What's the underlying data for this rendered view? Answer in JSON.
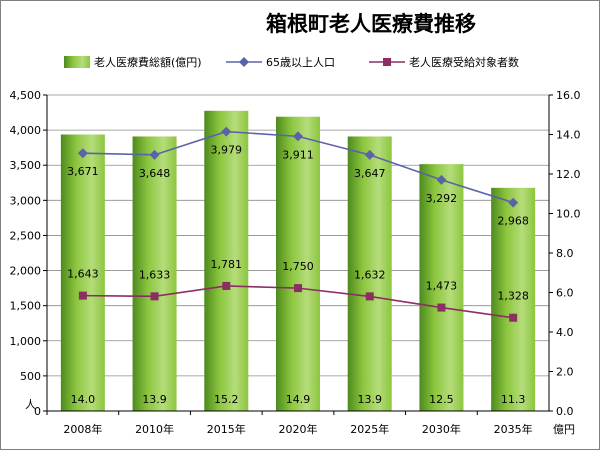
{
  "chart_data": {
    "type": "bar",
    "title": "箱根町老人医療費推移",
    "categories": [
      "2008年",
      "2010年",
      "2015年",
      "2020年",
      "2025年",
      "2030年",
      "2035年"
    ],
    "series": [
      {
        "name": "老人医療費総額(億円)",
        "type": "bar",
        "axis": "right",
        "values": [
          14.0,
          13.9,
          15.2,
          14.9,
          13.9,
          12.5,
          11.3
        ],
        "color": "#8cc63f"
      },
      {
        "name": "65歳以上人口",
        "type": "line",
        "axis": "left",
        "values": [
          3671,
          3648,
          3979,
          3911,
          3647,
          3292,
          2968
        ],
        "color": "#5b63a8"
      },
      {
        "name": "老人医療受給対象者数",
        "type": "line",
        "axis": "left",
        "values": [
          1643,
          1633,
          1781,
          1750,
          1632,
          1473,
          1328
        ],
        "color": "#8b2e62"
      }
    ],
    "bar_value_labels": [
      "14.0",
      "13.9",
      "15.2",
      "14.9",
      "13.9",
      "12.5",
      "11.3"
    ],
    "pop_value_labels": [
      "3,671",
      "3,648",
      "3,979",
      "3,911",
      "3,647",
      "3,292",
      "2,968"
    ],
    "recip_value_labels": [
      "1,643",
      "1,633",
      "1,781",
      "1,750",
      "1,632",
      "1,473",
      "1,328"
    ],
    "y_left": {
      "ylim": [
        0,
        4500
      ],
      "ticks": [
        "0",
        "500",
        "1,000",
        "1,500",
        "2,000",
        "2,500",
        "3,000",
        "3,500",
        "4,000",
        "4,500"
      ],
      "unit": "人"
    },
    "y_right": {
      "ylim": [
        0,
        16
      ],
      "ticks": [
        "0.0",
        "2.0",
        "4.0",
        "6.0",
        "8.0",
        "10.0",
        "12.0",
        "14.0",
        "16.0"
      ],
      "unit": "億円"
    },
    "grid": true,
    "legend_position": "top"
  }
}
